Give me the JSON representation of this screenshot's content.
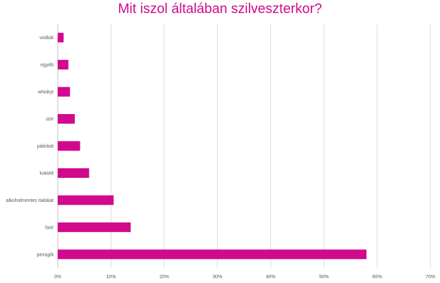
{
  "chart_data": {
    "type": "bar",
    "orientation": "horizontal",
    "title": "Mit iszol általában szilveszterkor?",
    "categories": [
      "vodkát",
      "egyéb",
      "whiskyt",
      "sört",
      "pálinkát",
      "koktélt",
      "alkoholmentes italokat",
      "bort",
      "pezsgőt"
    ],
    "values": [
      0.011,
      0.02,
      0.023,
      0.032,
      0.042,
      0.059,
      0.105,
      0.137,
      0.58
    ],
    "xlim": [
      0,
      0.7
    ],
    "x_ticks": [
      0,
      0.1,
      0.2,
      0.3,
      0.4,
      0.5,
      0.6,
      0.7
    ],
    "x_tick_labels": [
      "0%",
      "10%",
      "20%",
      "30%",
      "40%",
      "50%",
      "60%",
      "70%"
    ],
    "xlabel": "",
    "ylabel": "",
    "grid": "vertical",
    "legend": "none",
    "bar_color": "#d10a8c",
    "title_color": "#d10a8c",
    "grid_color": "#d9d9d9"
  }
}
